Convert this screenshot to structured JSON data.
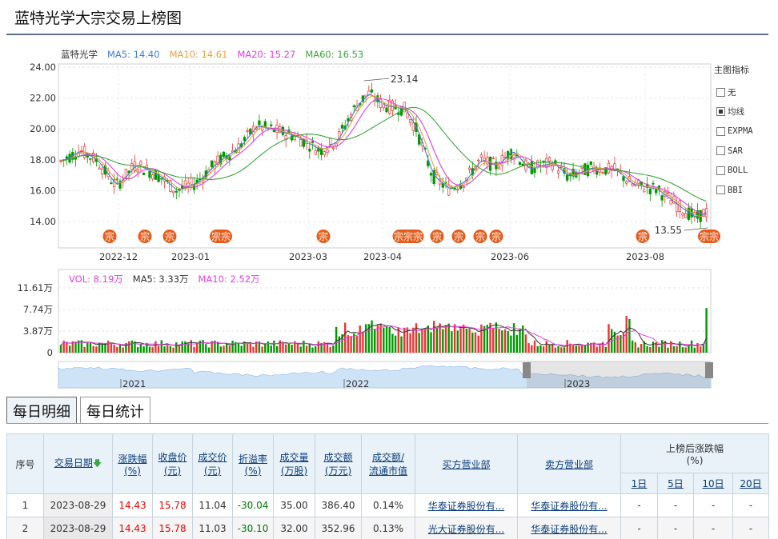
{
  "page": {
    "title": "蓝特光学大宗交易上榜图"
  },
  "main_chart": {
    "legend": [
      {
        "label": "蓝特光学",
        "color": "#333333"
      },
      {
        "label": "MA5: 14.40",
        "color": "#3f7bd8"
      },
      {
        "label": "MA10: 14.61",
        "color": "#e8a23a"
      },
      {
        "label": "MA20: 15.27",
        "color": "#e040e0"
      },
      {
        "label": "MA60: 16.53",
        "color": "#3aa63a"
      }
    ],
    "y_ticks": [
      "24.00",
      "22.00",
      "20.00",
      "18.00",
      "16.00",
      "14.00"
    ],
    "x_ticks": [
      "2022-12",
      "2023-01",
      "2023-03",
      "2023-04",
      "2023-06",
      "2023-08"
    ],
    "annotations": {
      "high": "23.14",
      "low": "13.55"
    },
    "markers": [
      "宗",
      "宗",
      "宗",
      "宗宗",
      "宗",
      "宗宗宗",
      "宗",
      "宗",
      "宗",
      "宗",
      "宗",
      "宗宗"
    ],
    "indicator_panel": {
      "title": "主图指标",
      "options": [
        {
          "label": "无",
          "checked": false
        },
        {
          "label": "均线",
          "checked": true
        },
        {
          "label": "EXPMA",
          "checked": false
        },
        {
          "label": "SAR",
          "checked": false
        },
        {
          "label": "BOLL",
          "checked": false
        },
        {
          "label": "BBI",
          "checked": false
        }
      ]
    }
  },
  "volume_chart": {
    "legend": [
      {
        "label": "VOL: 8.19万",
        "color": "#e040e0"
      },
      {
        "label": "MA5: 3.33万",
        "color": "#333333"
      },
      {
        "label": "MA10: 2.52万",
        "color": "#e040e0"
      }
    ],
    "y_ticks": [
      "11.61万",
      "7.74万",
      "3.87万",
      "0"
    ]
  },
  "navigator": {
    "labels": [
      "2021",
      "2022",
      "2023"
    ]
  },
  "tabs": [
    {
      "label": "每日明细",
      "active": true
    },
    {
      "label": "每日统计",
      "active": false
    }
  ],
  "table": {
    "headers": {
      "seq": "序号",
      "date": "交易日期",
      "change": "涨跌幅",
      "change_unit": "(%)",
      "close": "收盘价",
      "close_unit": "(元)",
      "price": "成交价",
      "price_unit": "(元)",
      "premium": "折溢率",
      "premium_unit": "(%)",
      "volume": "成交量",
      "volume_unit": "(万股)",
      "amount": "成交额",
      "amount_unit": "(万元)",
      "ratio": "成交额/",
      "ratio_unit": "流通市值",
      "buyer": "买方营业部",
      "seller": "卖方营业部",
      "after": "上榜后涨跌幅",
      "after_unit": "(%)",
      "d1": "1日",
      "d5": "5日",
      "d10": "10日",
      "d20": "20日"
    },
    "rows": [
      {
        "seq": "1",
        "date": "2023-08-29",
        "change": "14.43",
        "close": "15.78",
        "price": "11.04",
        "premium": "-30.04",
        "volume": "35.00",
        "amount": "386.40",
        "ratio": "0.14%",
        "buyer": "华泰证券股份有...",
        "seller": "华泰证券股份有...",
        "d1": "-",
        "d5": "-",
        "d10": "-",
        "d20": "-"
      },
      {
        "seq": "2",
        "date": "2023-08-29",
        "change": "14.43",
        "close": "15.78",
        "price": "11.03",
        "premium": "-30.10",
        "volume": "32.00",
        "amount": "352.96",
        "ratio": "0.13%",
        "buyer": "光大证券股份有...",
        "seller": "华泰证券股份有...",
        "d1": "-",
        "d5": "-",
        "d10": "-",
        "d20": "-"
      }
    ]
  }
}
